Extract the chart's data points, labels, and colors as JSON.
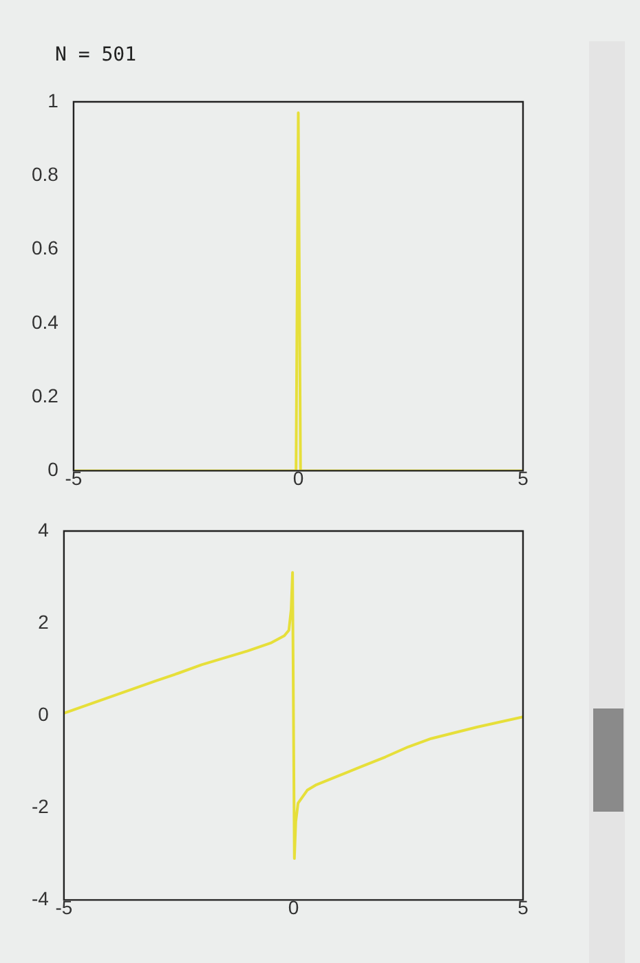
{
  "chart_data": [
    {
      "type": "line",
      "annotations": [
        "N = 501"
      ],
      "marker": "none",
      "xlim": [
        -5,
        5
      ],
      "xticks": [
        -5,
        0,
        5
      ],
      "ylim": [
        0,
        1
      ],
      "yticks": [
        0,
        0.2,
        0.4,
        0.6,
        0.8,
        1
      ],
      "x": [
        -5,
        -2.5,
        -0.05,
        0,
        0.05,
        2.5,
        5
      ],
      "series": [
        {
          "color": "#e6df3a",
          "values": [
            0,
            0,
            0,
            0.97,
            0,
            0,
            0
          ]
        }
      ]
    },
    {
      "type": "line",
      "marker": "none",
      "xlim": [
        -5,
        5
      ],
      "xticks": [
        -5,
        0,
        5
      ],
      "ylim": [
        -4,
        4
      ],
      "yticks": [
        -4,
        -2,
        0,
        2,
        4
      ],
      "x": [
        -5,
        -4,
        -3,
        -2.5,
        -2,
        -1.5,
        -1,
        -0.5,
        -0.2,
        -0.1,
        -0.05,
        -0.02,
        0.02,
        0.05,
        0.1,
        0.3,
        0.5,
        1,
        1.5,
        2,
        2.5,
        3,
        4,
        5
      ],
      "series": [
        {
          "color": "#e6df3a",
          "values": [
            0.05,
            0.4,
            0.75,
            0.92,
            1.1,
            1.25,
            1.4,
            1.57,
            1.73,
            1.85,
            2.3,
            3.1,
            -3.1,
            -2.3,
            -1.9,
            -1.62,
            -1.5,
            -1.3,
            -1.1,
            -0.9,
            -0.68,
            -0.5,
            -0.25,
            -0.03
          ]
        }
      ]
    }
  ]
}
